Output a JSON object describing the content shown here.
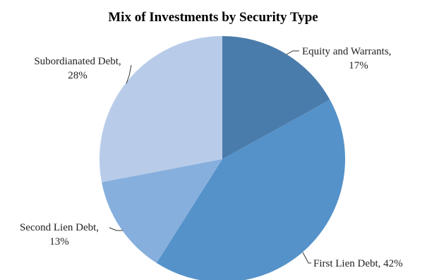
{
  "chart_data": {
    "type": "pie",
    "title": "Mix of Investments by Security Type",
    "slices": [
      {
        "name": "Equity and Warrants",
        "value": 17,
        "value_label": "17%",
        "color": "#4a7cab"
      },
      {
        "name": "First Lien Debt",
        "value": 42,
        "value_label": "42%",
        "color": "#5592c9"
      },
      {
        "name": "Second Lien Debt",
        "value": 13,
        "value_label": "13%",
        "color": "#87afdd"
      },
      {
        "name": "Subordianated Debt",
        "value": 28,
        "value_label": "28%",
        "color": "#b8cce9"
      }
    ],
    "start_angle": "12 o'clock",
    "direction": "clockwise"
  }
}
